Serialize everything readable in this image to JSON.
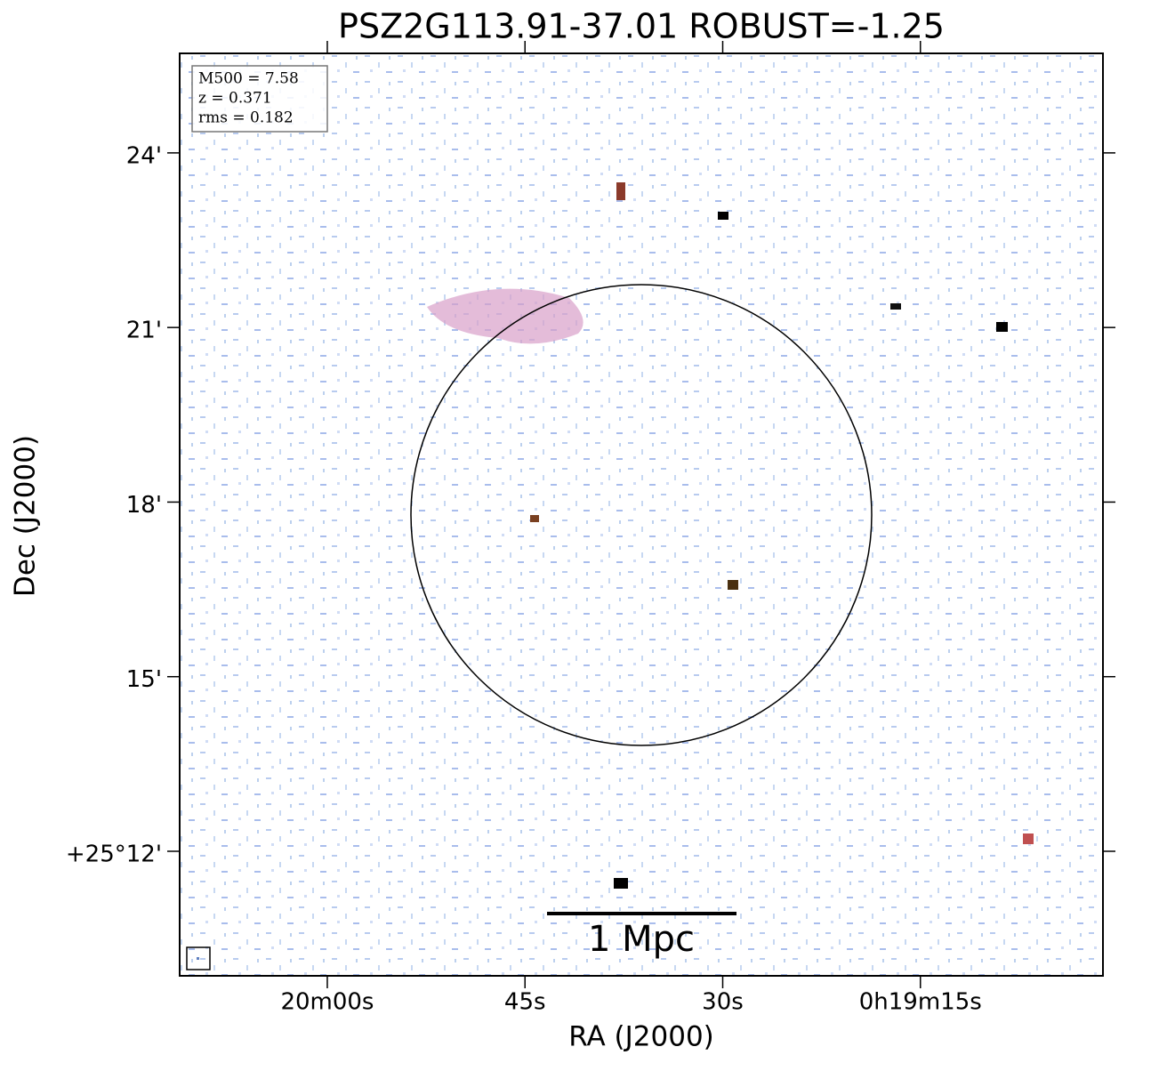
{
  "chart_data": {
    "type": "image",
    "title": "PSZ2G113.91-37.01 ROBUST=-1.25",
    "xlabel": "RA (J2000)",
    "ylabel": "Dec (J2000)",
    "xlim": [
      71.2,
      1.15
    ],
    "ylim": [
      9.86,
      25.71
    ],
    "xticks": [
      {
        "value": 60,
        "label": "20m00s"
      },
      {
        "value": 45,
        "label": "45s"
      },
      {
        "value": 30,
        "label": "30s"
      },
      {
        "value": 15,
        "label": "0h19m15s"
      }
    ],
    "yticks": [
      {
        "value": 12,
        "label": "+25°12'"
      },
      {
        "value": 15,
        "label": "15'"
      },
      {
        "value": 18,
        "label": "18'"
      },
      {
        "value": 21,
        "label": "21'"
      },
      {
        "value": 24,
        "label": "24'"
      }
    ],
    "annotations": [
      "M500 = 7.58",
      "z = 0.371",
      "rms = 0.182"
    ],
    "scale_bar_label": "1 Mpc"
  }
}
